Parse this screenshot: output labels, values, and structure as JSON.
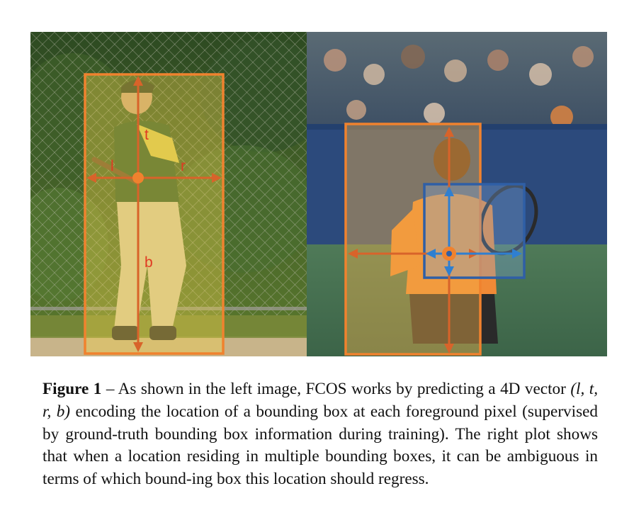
{
  "figure": {
    "left_image": {
      "labels": {
        "l": "l",
        "t": "t",
        "r": "r",
        "b": "b"
      }
    },
    "colors": {
      "orange_box": "#f0822e",
      "orange_arrow": "#d8632a",
      "label_red": "#e03a22",
      "blue_box": "#2f5fa6",
      "blue_arrow": "#2f7fd0"
    },
    "caption": {
      "label": "Figure 1",
      "dash": " – ",
      "text_before_vector": "As shown in the left image, FCOS works by predicting a 4D vector ",
      "vector": "(l, t, r, b)",
      "text_after_vector": " encoding the location of a bounding box at each foreground pixel (supervised by ground-truth bounding box information during training). The right plot shows that when a location residing in multiple bounding boxes, it can be ambiguous in terms of which bound-ing box this location should regress."
    }
  }
}
